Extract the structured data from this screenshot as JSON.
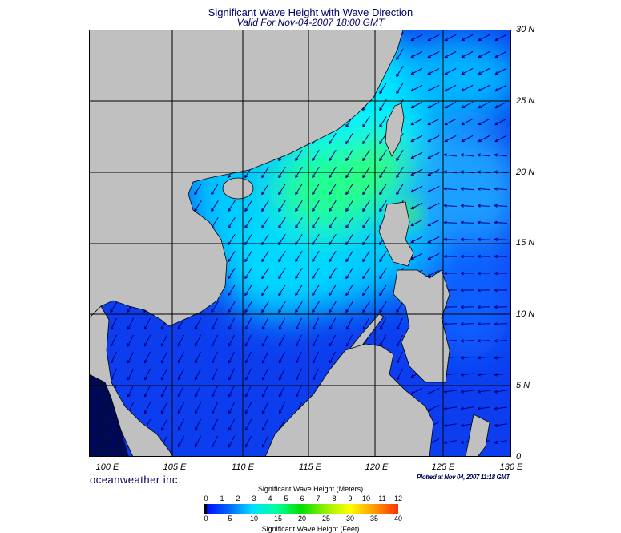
{
  "title": "Significant Wave Height with Wave Direction",
  "subtitle": "Valid For Nov-04-2007 18:00 GMT",
  "map": {
    "region": "South China Sea",
    "lon_labels": [
      "100 E",
      "105 E",
      "110 E",
      "115 E",
      "120 E",
      "125 E",
      "130 E"
    ],
    "lat_labels": [
      "30 N",
      "25 N",
      "20 N",
      "15 N",
      "10 N",
      "5 N",
      "0"
    ],
    "land_color": "#c0c0c0",
    "grid_color": "#000000",
    "arrow_color": "#000080"
  },
  "footer": {
    "brand": "oceanweather inc.",
    "plotted": "Plotted at Nov 04, 2007 11:18 GMT"
  },
  "colorbar": {
    "meters_label": "Significant Wave Height (Meters)",
    "feet_label": "Significant Wave Height (Feet)",
    "meters_ticks": [
      "0",
      "1",
      "2",
      "3",
      "4",
      "5",
      "6",
      "7",
      "8",
      "9",
      "10",
      "11",
      "12"
    ],
    "feet_ticks": [
      "0",
      "5",
      "10",
      "15",
      "20",
      "25",
      "30",
      "35",
      "40"
    ]
  }
}
